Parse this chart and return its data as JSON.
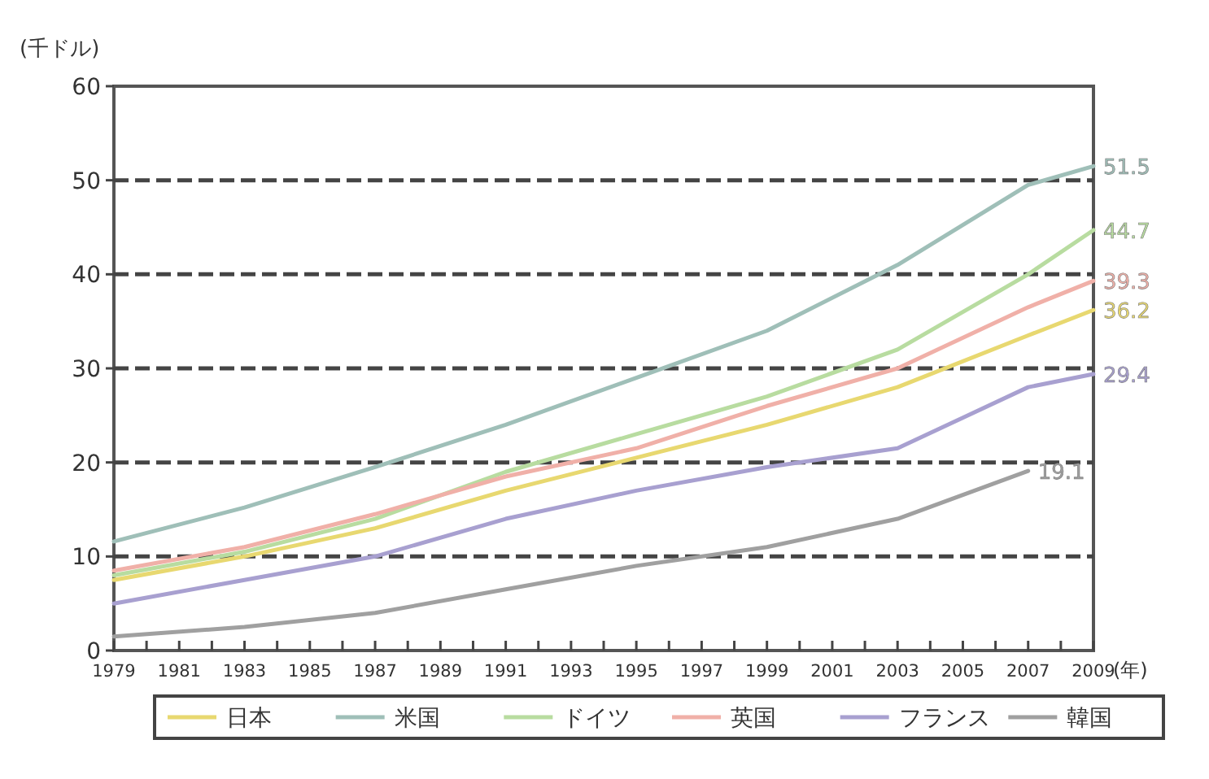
{
  "chart_data": {
    "type": "line",
    "ylabel": "(千ドル)",
    "xlabel": "(年)",
    "xlim": [
      1979,
      2009
    ],
    "ylim": [
      0,
      60
    ],
    "xticks": [
      1979,
      {
        "value": 1980,
        "label": null
      },
      1981,
      {
        "value": 1982,
        "label": null
      },
      1983,
      {
        "value": 1984,
        "label": null
      },
      1985,
      {
        "value": 1986,
        "label": null
      },
      1987,
      {
        "value": 1988,
        "label": null
      },
      1989,
      {
        "value": 1990,
        "label": null
      },
      1991,
      {
        "value": 1992,
        "label": null
      },
      1993,
      {
        "value": 1994,
        "label": null
      },
      1995,
      {
        "value": 1996,
        "label": null
      },
      1997,
      {
        "value": 1998,
        "label": null
      },
      1999,
      {
        "value": 2000,
        "label": null
      },
      2001,
      {
        "value": 2002,
        "label": null
      },
      2003,
      {
        "value": 2004,
        "label": null
      },
      2005,
      {
        "value": 2006,
        "label": null
      },
      2007,
      {
        "value": 2008,
        "label": null
      },
      2009
    ],
    "yticks": [
      0,
      10,
      20,
      30,
      40,
      50,
      60
    ],
    "grid": "y",
    "legend": "bottom",
    "marker": "none",
    "series": [
      {
        "name": "日本",
        "color": "#e8d870",
        "x": [
          1979,
          1983,
          1987,
          1991,
          1995,
          1999,
          2003,
          2007,
          2009
        ],
        "values": [
          7.5,
          10,
          13,
          17,
          20.5,
          24,
          28,
          33.5,
          36.2
        ],
        "value_labels": [
          null,
          null,
          null,
          null,
          null,
          null,
          null,
          null,
          "36.2"
        ]
      },
      {
        "name": "米国",
        "color": "#9fbfb8",
        "x": [
          1979,
          1983,
          1987,
          1991,
          1995,
          1999,
          2003,
          2007,
          2009
        ],
        "values": [
          11.6,
          15.2,
          19.5,
          24,
          29,
          34,
          41,
          49.5,
          51.5
        ],
        "value_labels": [
          null,
          null,
          null,
          null,
          null,
          null,
          null,
          null,
          "51.5"
        ]
      },
      {
        "name": "ドイツ",
        "color": "#b8dca0",
        "x": [
          1979,
          1983,
          1987,
          1991,
          1995,
          1999,
          2003,
          2007,
          2009
        ],
        "values": [
          8,
          10.5,
          14,
          19,
          23,
          27,
          32,
          40,
          44.7
        ],
        "value_labels": [
          null,
          null,
          null,
          null,
          null,
          null,
          null,
          null,
          "44.7"
        ]
      },
      {
        "name": "英国",
        "color": "#f0b0a8",
        "x": [
          1979,
          1983,
          1987,
          1991,
          1995,
          1999,
          2003,
          2007,
          2009
        ],
        "values": [
          8.5,
          11,
          14.5,
          18.5,
          21.5,
          26,
          30,
          36.5,
          39.3
        ],
        "value_labels": [
          null,
          null,
          null,
          null,
          null,
          null,
          null,
          null,
          "39.3"
        ]
      },
      {
        "name": "フランス",
        "color": "#a8a0d0",
        "x": [
          1979,
          1983,
          1987,
          1991,
          1995,
          1999,
          2003,
          2007,
          2009
        ],
        "values": [
          5,
          7.5,
          10,
          14,
          17,
          19.5,
          21.5,
          28,
          29.4
        ],
        "value_labels": [
          null,
          null,
          null,
          null,
          null,
          null,
          null,
          null,
          "29.4"
        ]
      },
      {
        "name": "韓国",
        "color": "#a0a0a0",
        "x": [
          1979,
          1983,
          1987,
          1991,
          1995,
          1999,
          2003,
          2007
        ],
        "values": [
          1.5,
          2.5,
          4,
          6.5,
          9,
          11,
          14,
          19.1
        ],
        "value_labels": [
          null,
          null,
          null,
          null,
          null,
          null,
          null,
          "19.1"
        ]
      }
    ]
  }
}
